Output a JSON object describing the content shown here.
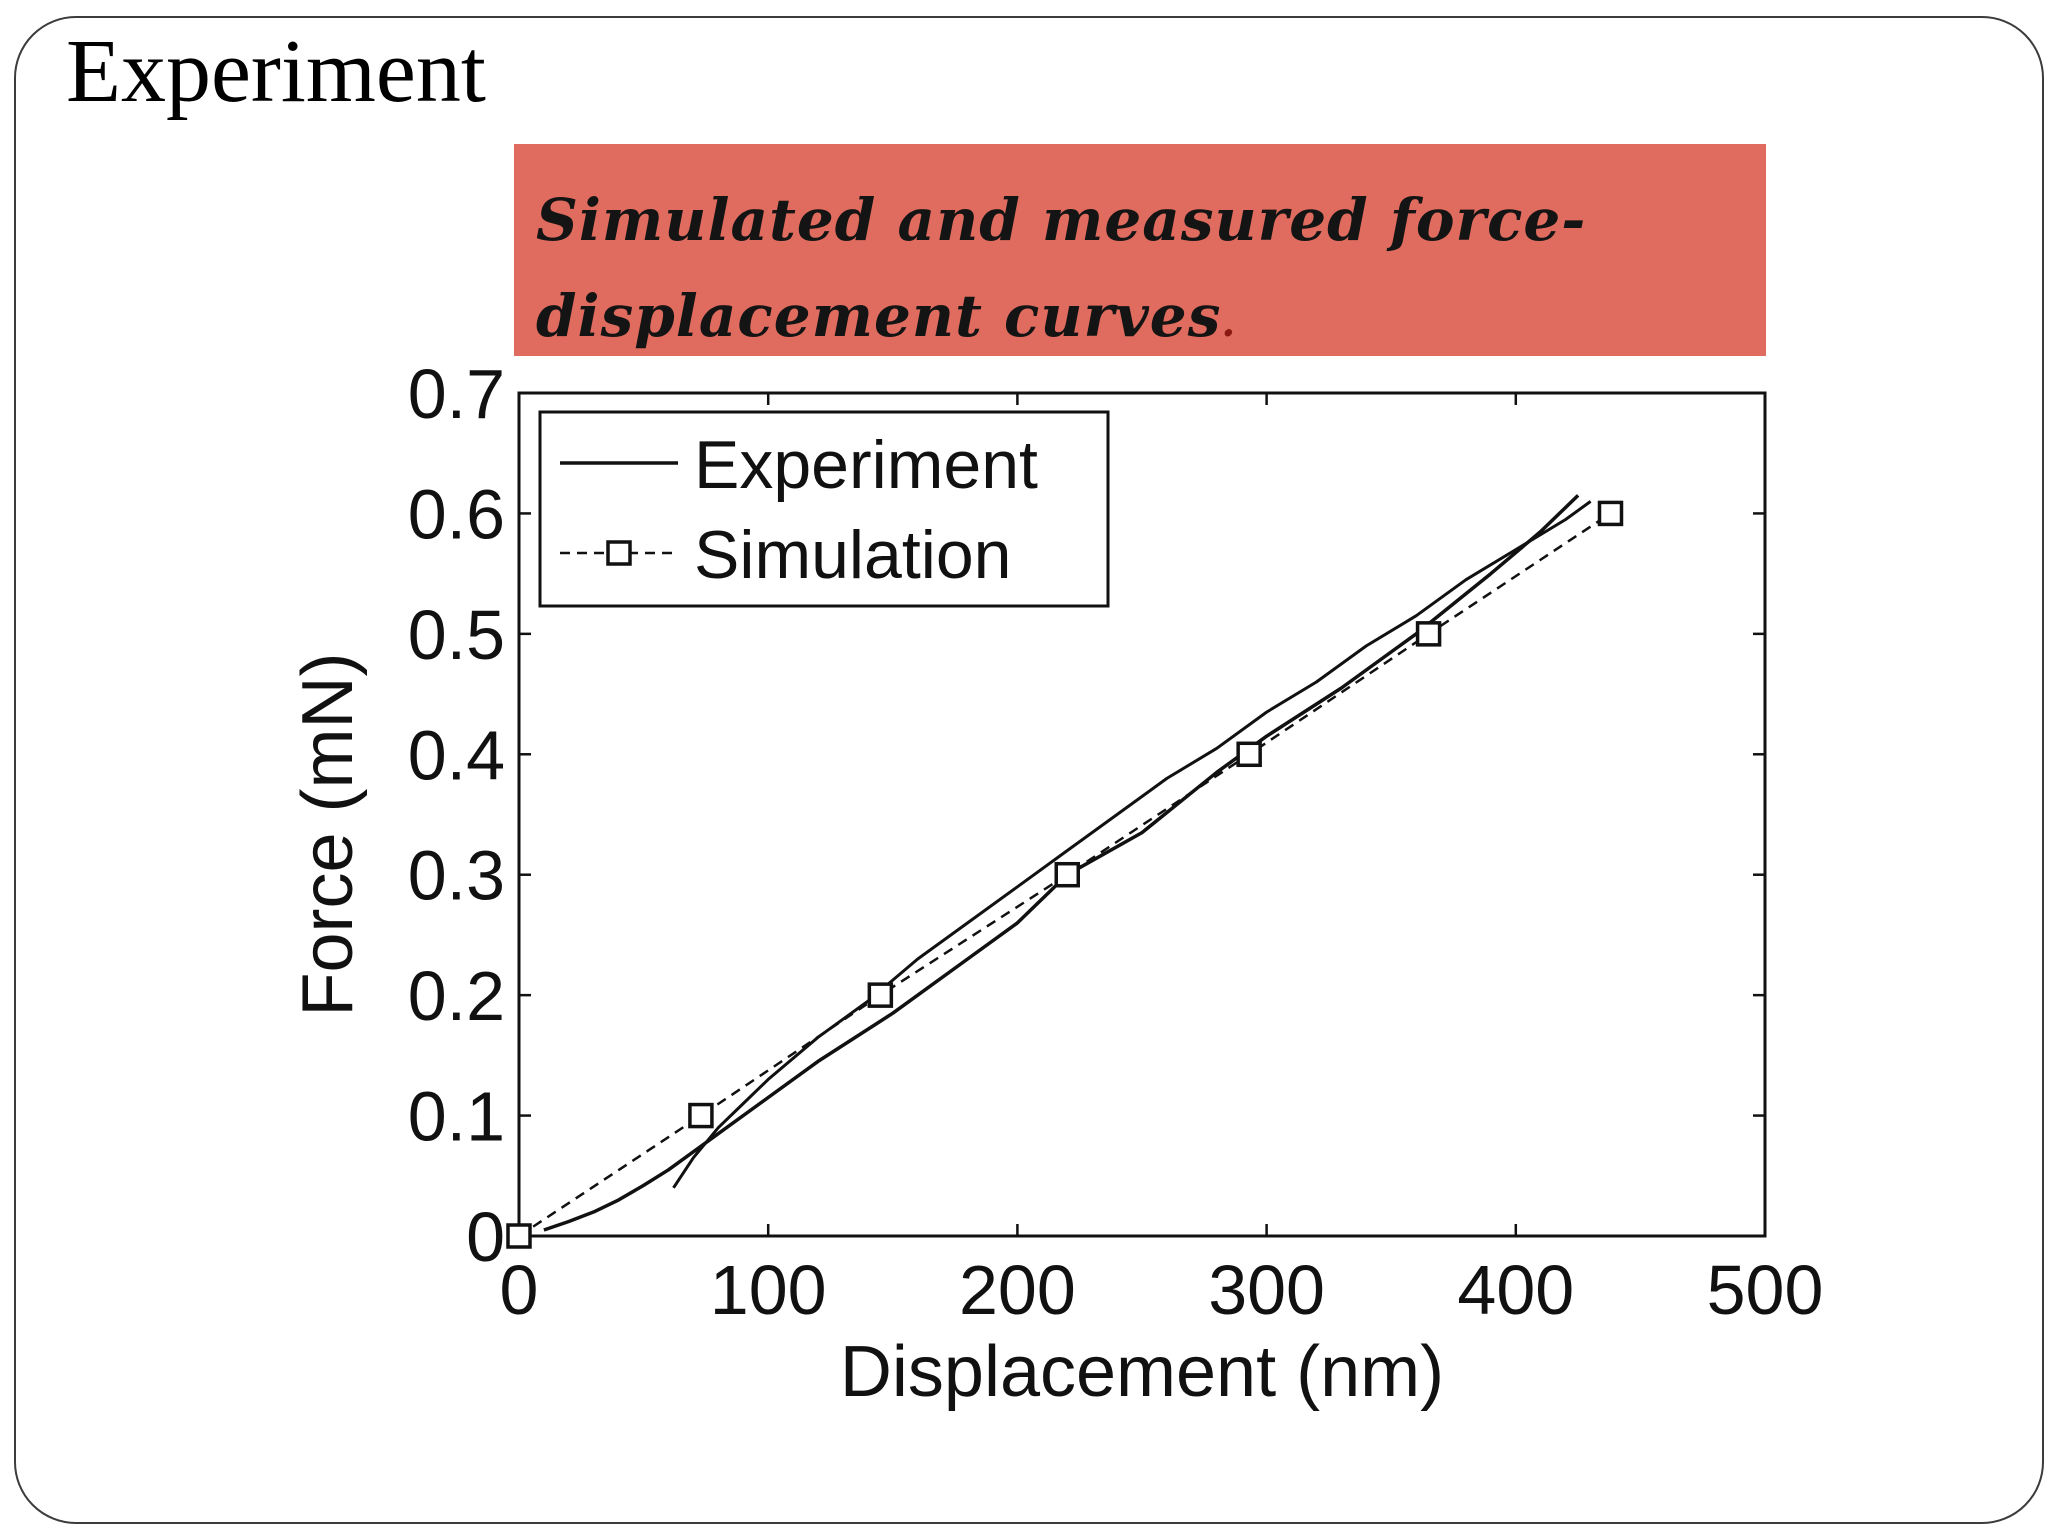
{
  "slide": {
    "title": "Experiment",
    "caption": "Simulated and measured force-displacement curves",
    "caption_period": "."
  },
  "chart_data": {
    "type": "line",
    "xlabel": "Displacement (nm)",
    "ylabel": "Force (mN)",
    "xlim": [
      0,
      500
    ],
    "ylim": [
      0,
      0.7
    ],
    "xticks": [
      0,
      100,
      200,
      300,
      400,
      500
    ],
    "yticks": [
      0,
      0.1,
      0.2,
      0.3,
      0.4,
      0.5,
      0.6,
      0.7
    ],
    "ytick_labels": [
      "0",
      "0.1",
      "0.2",
      "0.3",
      "0.4",
      "0.5",
      "0.6",
      "0.7"
    ],
    "legend_position": "top-left",
    "grid": false,
    "series": [
      {
        "name": "Experiment",
        "style": "solid",
        "color": "#111111",
        "loading": {
          "x": [
            10,
            20,
            30,
            40,
            50,
            60,
            80,
            100,
            120,
            150,
            180,
            200,
            220,
            250,
            280,
            300,
            330,
            360,
            390,
            410,
            425
          ],
          "y": [
            0.005,
            0.012,
            0.02,
            0.03,
            0.042,
            0.055,
            0.085,
            0.115,
            0.145,
            0.185,
            0.23,
            0.26,
            0.3,
            0.335,
            0.385,
            0.415,
            0.455,
            0.5,
            0.55,
            0.585,
            0.615
          ]
        },
        "unloading": {
          "x": [
            430,
            420,
            400,
            380,
            360,
            340,
            320,
            300,
            280,
            260,
            240,
            220,
            200,
            180,
            160,
            140,
            120,
            100,
            90,
            80,
            70,
            62
          ],
          "y": [
            0.61,
            0.595,
            0.57,
            0.545,
            0.515,
            0.49,
            0.46,
            0.435,
            0.405,
            0.38,
            0.35,
            0.32,
            0.29,
            0.26,
            0.23,
            0.195,
            0.165,
            0.13,
            0.11,
            0.09,
            0.065,
            0.04
          ]
        }
      },
      {
        "name": "Simulation",
        "style": "dashed",
        "marker": "square",
        "color": "#111111",
        "x": [
          0,
          73,
          145,
          220,
          293,
          365,
          438
        ],
        "y": [
          0,
          0.1,
          0.2,
          0.3,
          0.4,
          0.5,
          0.6
        ]
      }
    ]
  }
}
